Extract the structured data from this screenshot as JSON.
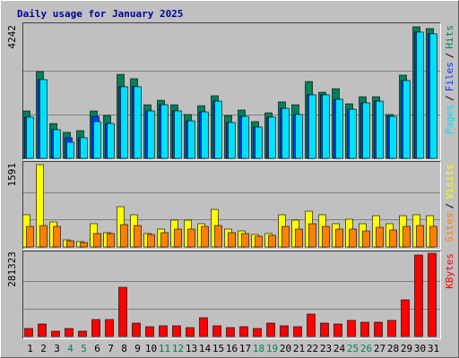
{
  "chart_data": [
    {
      "type": "bar",
      "title": "Daily usage for January 2025",
      "legend_separator": "/",
      "ylim": [
        0,
        4242
      ],
      "yticks": [
        4242
      ],
      "series": [
        {
          "name": "Hits",
          "color": "#00805c",
          "values": [
            1530,
            2800,
            1125,
            840,
            895,
            1530,
            1385,
            2710,
            2570,
            1730,
            1875,
            1730,
            1415,
            1700,
            2020,
            1385,
            1560,
            1185,
            1470,
            1820,
            1730,
            2480,
            2135,
            2250,
            1760,
            1990,
            1990,
            1415,
            2685,
            4242,
            4185
          ]
        },
        {
          "name": "Files",
          "color": "#0040ff",
          "values": [
            1330,
            2540,
            925,
            665,
            665,
            1355,
            1125,
            2310,
            2310,
            1530,
            1730,
            1530,
            1210,
            1500,
            1845,
            1155,
            1355,
            1010,
            1330,
            1615,
            1415,
            2050,
            2050,
            1905,
            1585,
            1790,
            1845,
            1355,
            2510,
            4070,
            4015
          ]
        },
        {
          "name": "Pages",
          "color": "#00e0ff",
          "values": [
            1330,
            2540,
            925,
            520,
            665,
            1185,
            1125,
            2310,
            2310,
            1530,
            1730,
            1530,
            1210,
            1500,
            1845,
            1155,
            1355,
            1010,
            1330,
            1615,
            1415,
            2050,
            2050,
            1905,
            1585,
            1790,
            1845,
            1355,
            2510,
            4070,
            4015
          ]
        }
      ]
    },
    {
      "type": "bar",
      "legend_separator": "/",
      "ylim": [
        0,
        1591
      ],
      "yticks": [
        1591
      ],
      "series": [
        {
          "name": "Visits",
          "color": "#ffff00",
          "values": [
            623,
            1591,
            484,
            138,
            104,
            450,
            277,
            778,
            623,
            260,
            346,
            519,
            519,
            450,
            726,
            346,
            311,
            242,
            260,
            623,
            519,
            692,
            623,
            450,
            536,
            450,
            605,
            450,
            605,
            623,
            605
          ]
        },
        {
          "name": "Sites",
          "color": "#ff8000",
          "values": [
            398,
            415,
            398,
            121,
            86,
            260,
            260,
            432,
            415,
            242,
            277,
            346,
            346,
            398,
            415,
            277,
            260,
            208,
            225,
            398,
            346,
            450,
            398,
            346,
            346,
            311,
            381,
            329,
            398,
            415,
            398
          ]
        }
      ]
    },
    {
      "type": "bar",
      "ylim": [
        0,
        281323
      ],
      "yticks": [
        281323
      ],
      "series": [
        {
          "name": "KBytes",
          "color": "#ff0000",
          "values": [
            27225,
            42350,
            18150,
            27225,
            18150,
            57475,
            57475,
            166375,
            45375,
            33275,
            36300,
            36300,
            30250,
            63525,
            36300,
            30250,
            33275,
            27225,
            45375,
            36300,
            33275,
            75625,
            45375,
            42350,
            54450,
            48400,
            48400,
            54450,
            124025,
            275275,
            281323
          ]
        }
      ],
      "categories": [
        "1",
        "2",
        "3",
        "4",
        "5",
        "6",
        "7",
        "8",
        "9",
        "10",
        "11",
        "12",
        "13",
        "14",
        "15",
        "16",
        "17",
        "18",
        "19",
        "20",
        "21",
        "22",
        "23",
        "24",
        "25",
        "26",
        "27",
        "28",
        "29",
        "30",
        "31"
      ],
      "category_colors": [
        "#000000",
        "#000000",
        "#000000",
        "#00805c",
        "#00805c",
        "#000000",
        "#000000",
        "#000000",
        "#000000",
        "#000000",
        "#00805c",
        "#00805c",
        "#000000",
        "#000000",
        "#000000",
        "#000000",
        "#000000",
        "#00805c",
        "#00805c",
        "#000000",
        "#000000",
        "#000000",
        "#000000",
        "#000000",
        "#00805c",
        "#00805c",
        "#000000",
        "#000000",
        "#000000",
        "#000000",
        "#000000"
      ]
    }
  ]
}
